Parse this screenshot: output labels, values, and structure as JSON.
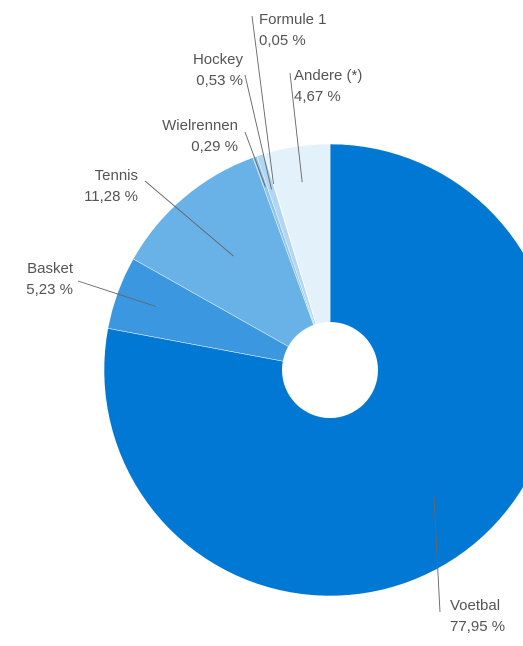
{
  "chart_data": {
    "type": "pie",
    "donut": true,
    "title": "",
    "start": "top, clockwise",
    "slices": [
      {
        "label": "Voetbal",
        "value_label": "77,95 %",
        "value": 77.95,
        "color": "#0078d4"
      },
      {
        "label": "Basket",
        "value_label": "5,23 %",
        "value": 5.23,
        "color": "#3a97e0"
      },
      {
        "label": "Tennis",
        "value_label": "11,28 %",
        "value": 11.28,
        "color": "#68b2e8"
      },
      {
        "label": "Wielrennen",
        "value_label": "0,29 %",
        "value": 0.29,
        "color": "#8cc4ee"
      },
      {
        "label": "Hockey",
        "value_label": "0,53 %",
        "value": 0.53,
        "color": "#b0d6f3"
      },
      {
        "label": "Formule 1",
        "value_label": "0,05 %",
        "value": 0.05,
        "color": "#c9e3f7"
      },
      {
        "label": "Andere (*)",
        "value_label": "4,67 %",
        "value": 4.67,
        "color": "#e3f1fb"
      }
    ]
  }
}
